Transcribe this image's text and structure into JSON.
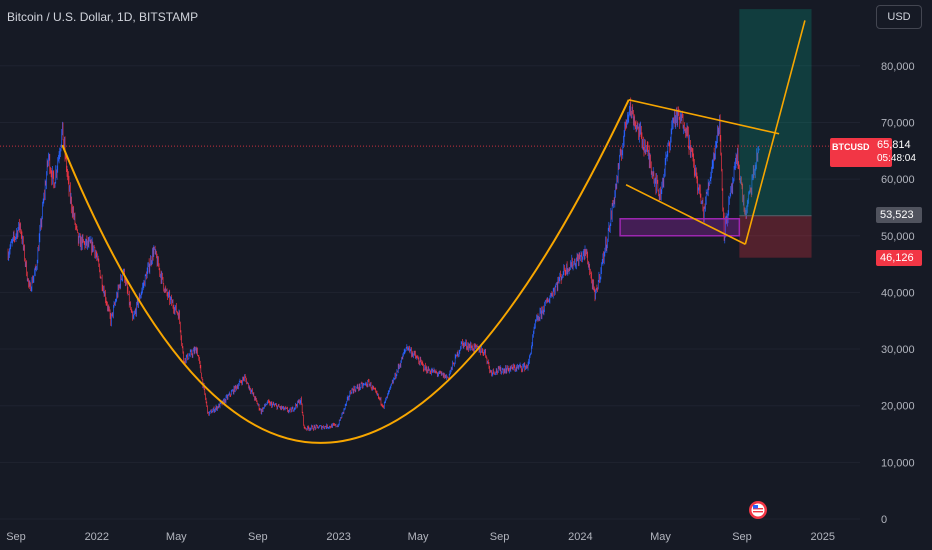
{
  "title": "Bitcoin / U.S. Dollar, 1D, BITSTAMP",
  "currency_button": "USD",
  "price_label": {
    "symbol": "BTCUSD",
    "value": "65,814",
    "countdown": "05:48:04"
  },
  "tag_entry": "53,523",
  "tag_stop": "46,126",
  "colors": {
    "background": "#161a25",
    "bull": "#2962ff",
    "bear": "#f23645",
    "pattern": "#f7a600",
    "zone": "#9c27b0"
  },
  "icons": {
    "event_marker": "us-flag-icon"
  },
  "chart_data": {
    "type": "candlestick",
    "symbol": "BTCUSD",
    "interval": "1D",
    "exchange": "BITSTAMP",
    "y_ticks": [
      0,
      10000,
      20000,
      30000,
      40000,
      50000,
      60000,
      70000,
      80000
    ],
    "y_tick_labels": [
      "0",
      "10,000",
      "20,000",
      "30,000",
      "40,000",
      "50,000",
      "60,000",
      "70,000",
      "80,000"
    ],
    "x_ticks": [
      {
        "date": "2021-09-01",
        "label": "Sep"
      },
      {
        "date": "2022-01-01",
        "label": "2022"
      },
      {
        "date": "2022-05-01",
        "label": "May"
      },
      {
        "date": "2022-09-01",
        "label": "Sep"
      },
      {
        "date": "2023-01-01",
        "label": "2023"
      },
      {
        "date": "2023-05-01",
        "label": "May"
      },
      {
        "date": "2023-09-01",
        "label": "Sep"
      },
      {
        "date": "2024-01-01",
        "label": "2024"
      },
      {
        "date": "2024-05-01",
        "label": "May"
      },
      {
        "date": "2024-09-01",
        "label": "Sep"
      },
      {
        "date": "2025-01-01",
        "label": "2025"
      }
    ],
    "last_price": 65814,
    "price_path": [
      [
        "2021-08-20",
        47000
      ],
      [
        "2021-09-07",
        52000
      ],
      [
        "2021-09-21",
        40500
      ],
      [
        "2021-10-01",
        44000
      ],
      [
        "2021-10-20",
        64000
      ],
      [
        "2021-10-28",
        59000
      ],
      [
        "2021-11-10",
        68500
      ],
      [
        "2021-11-20",
        58000
      ],
      [
        "2021-12-04",
        49000
      ],
      [
        "2021-12-28",
        48000
      ],
      [
        "2022-01-22",
        35000
      ],
      [
        "2022-02-10",
        44000
      ],
      [
        "2022-02-24",
        35000
      ],
      [
        "2022-03-28",
        47500
      ],
      [
        "2022-04-15",
        40000
      ],
      [
        "2022-05-05",
        36000
      ],
      [
        "2022-05-12",
        28000
      ],
      [
        "2022-06-01",
        30000
      ],
      [
        "2022-06-18",
        18500
      ],
      [
        "2022-07-10",
        20500
      ],
      [
        "2022-08-12",
        25000
      ],
      [
        "2022-09-06",
        19000
      ],
      [
        "2022-09-15",
        20500
      ],
      [
        "2022-10-20",
        19000
      ],
      [
        "2022-11-05",
        21000
      ],
      [
        "2022-11-10",
        16000
      ],
      [
        "2022-12-31",
        16500
      ],
      [
        "2023-01-20",
        22700
      ],
      [
        "2023-02-16",
        24000
      ],
      [
        "2023-03-10",
        20000
      ],
      [
        "2023-04-14",
        30500
      ],
      [
        "2023-05-12",
        26500
      ],
      [
        "2023-06-15",
        25000
      ],
      [
        "2023-07-06",
        31000
      ],
      [
        "2023-08-10",
        29500
      ],
      [
        "2023-08-18",
        26000
      ],
      [
        "2023-10-14",
        27000
      ],
      [
        "2023-10-25",
        34500
      ],
      [
        "2023-12-08",
        44000
      ],
      [
        "2024-01-10",
        47000
      ],
      [
        "2024-01-23",
        39000
      ],
      [
        "2024-02-13",
        51000
      ],
      [
        "2024-02-28",
        62000
      ],
      [
        "2024-03-14",
        73000
      ],
      [
        "2024-04-13",
        64000
      ],
      [
        "2024-04-30",
        57000
      ],
      [
        "2024-05-21",
        71000
      ],
      [
        "2024-06-07",
        70000
      ],
      [
        "2024-07-05",
        54000
      ],
      [
        "2024-07-29",
        70000
      ],
      [
        "2024-08-05",
        50500
      ],
      [
        "2024-08-25",
        64000
      ],
      [
        "2024-09-06",
        53500
      ],
      [
        "2024-09-27",
        65814
      ]
    ],
    "drawings": {
      "cup_curve": [
        [
          "2021-11-10",
          66000
        ],
        [
          "2022-12-20",
          13500
        ],
        [
          "2024-03-14",
          74000
        ]
      ],
      "wedge_upper": [
        [
          "2024-03-14",
          74000
        ],
        [
          "2024-10-27",
          68000
        ]
      ],
      "wedge_lower": [
        [
          "2024-03-10",
          59000
        ],
        [
          "2024-09-06",
          48500
        ]
      ],
      "breakout_line": [
        [
          "2024-09-06",
          48500
        ],
        [
          "2024-12-05",
          88000
        ]
      ],
      "demand_zone": {
        "from": "2024-03-01",
        "to": "2024-08-28",
        "top": 53000,
        "bottom": 50000
      },
      "long_position": {
        "from": "2024-08-28",
        "to": "2024-12-15",
        "target": 90000,
        "entry": 53523,
        "stop": 46126
      }
    }
  }
}
